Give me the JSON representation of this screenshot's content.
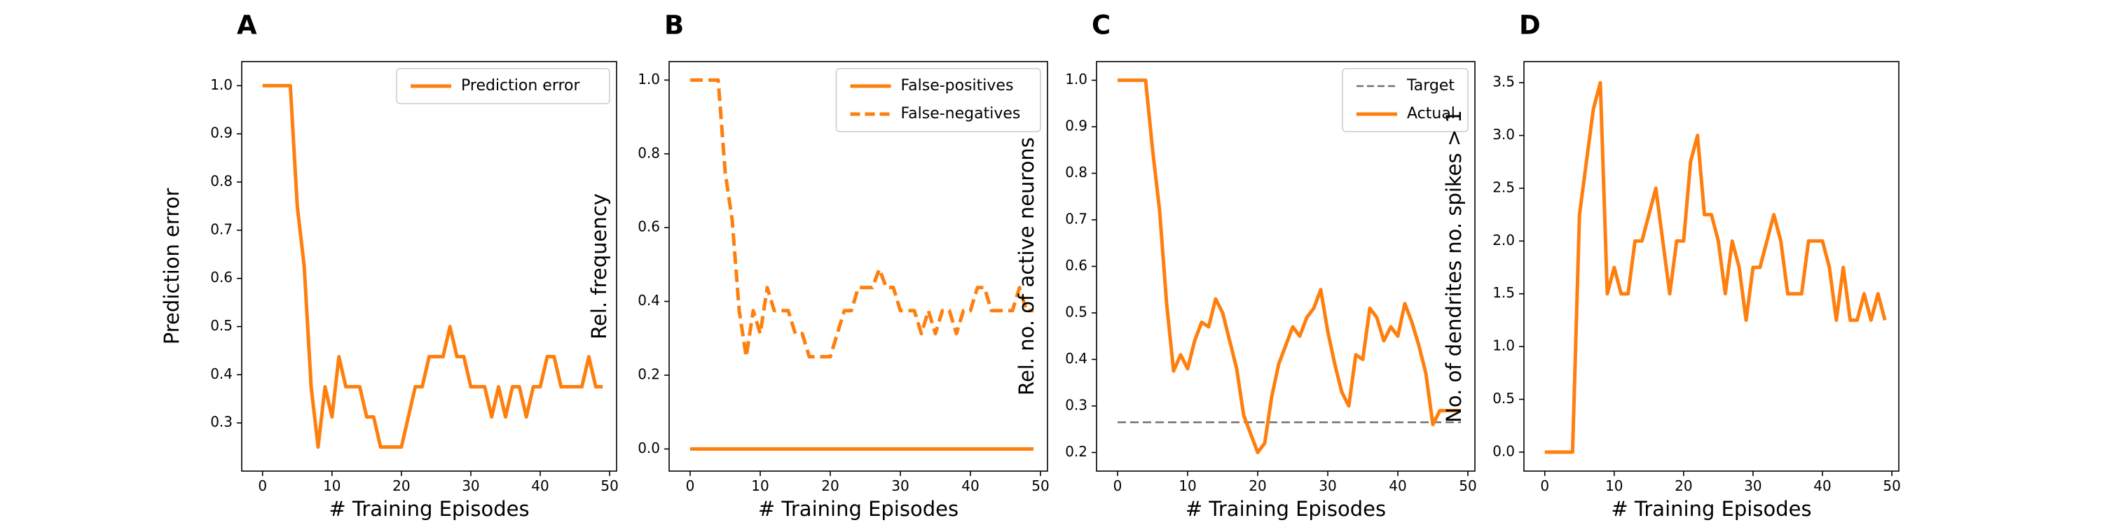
{
  "colors": {
    "series": "#ff7f0e",
    "target": "#707070",
    "axes": "#000000",
    "legend_border": "#cccccc"
  },
  "chart_data": [
    {
      "type": "line",
      "panel_label": "A",
      "xlabel": "# Training Episodes",
      "ylabel": "Prediction error",
      "xlim": [
        -3.0,
        51.0
      ],
      "ylim": [
        0.2,
        1.05
      ],
      "xticks": [
        0,
        10,
        20,
        30,
        40,
        50
      ],
      "yticks": [
        0.3,
        0.4,
        0.5,
        0.6,
        0.7,
        0.8,
        0.9,
        1.0
      ],
      "ytick_labels": [
        "0.3",
        "0.4",
        "0.5",
        "0.6",
        "0.7",
        "0.8",
        "0.9",
        "1.0"
      ],
      "legend_position": "upper right",
      "series": [
        {
          "name": "Prediction error",
          "style": "solid",
          "x": [
            0,
            1,
            2,
            3,
            4,
            5,
            6,
            7,
            8,
            9,
            10,
            11,
            12,
            13,
            14,
            15,
            16,
            17,
            18,
            19,
            20,
            21,
            22,
            23,
            24,
            25,
            26,
            27,
            28,
            29,
            30,
            31,
            32,
            33,
            34,
            35,
            36,
            37,
            38,
            39,
            40,
            41,
            42,
            43,
            44,
            45,
            46,
            47,
            48,
            49
          ],
          "y": [
            1.0,
            1.0,
            1.0,
            1.0,
            1.0,
            0.75,
            0.625,
            0.375,
            0.25,
            0.375,
            0.3125,
            0.4375,
            0.375,
            0.375,
            0.375,
            0.3125,
            0.3125,
            0.25,
            0.25,
            0.25,
            0.25,
            0.3125,
            0.375,
            0.375,
            0.4375,
            0.4375,
            0.4375,
            0.5,
            0.4375,
            0.4375,
            0.375,
            0.375,
            0.375,
            0.3125,
            0.375,
            0.3125,
            0.375,
            0.375,
            0.3125,
            0.375,
            0.375,
            0.4375,
            0.4375,
            0.375,
            0.375,
            0.375,
            0.375,
            0.4375,
            0.375,
            0.375
          ]
        }
      ]
    },
    {
      "type": "line",
      "panel_label": "B",
      "xlabel": "# Training Episodes",
      "ylabel": "Rel. frequency",
      "xlim": [
        -3.0,
        51.0
      ],
      "ylim": [
        -0.06,
        1.05
      ],
      "xticks": [
        0,
        10,
        20,
        30,
        40,
        50
      ],
      "yticks": [
        0.0,
        0.2,
        0.4,
        0.6,
        0.8,
        1.0
      ],
      "ytick_labels": [
        "0.0",
        "0.2",
        "0.4",
        "0.6",
        "0.8",
        "1.0"
      ],
      "legend_position": "upper right",
      "series": [
        {
          "name": "False-positives",
          "style": "solid",
          "x": [
            0,
            49
          ],
          "y": [
            0.0,
            0.0
          ]
        },
        {
          "name": "False-negatives",
          "style": "dashed",
          "x": [
            0,
            1,
            2,
            3,
            4,
            5,
            6,
            7,
            8,
            9,
            10,
            11,
            12,
            13,
            14,
            15,
            16,
            17,
            18,
            19,
            20,
            21,
            22,
            23,
            24,
            25,
            26,
            27,
            28,
            29,
            30,
            31,
            32,
            33,
            34,
            35,
            36,
            37,
            38,
            39,
            40,
            41,
            42,
            43,
            44,
            45,
            46,
            47,
            48,
            49
          ],
          "y": [
            1.0,
            1.0,
            1.0,
            1.0,
            1.0,
            0.75,
            0.62,
            0.375,
            0.25,
            0.375,
            0.3125,
            0.4375,
            0.375,
            0.375,
            0.375,
            0.3125,
            0.3125,
            0.25,
            0.25,
            0.25,
            0.25,
            0.3125,
            0.375,
            0.375,
            0.4375,
            0.4375,
            0.4375,
            0.4875,
            0.4375,
            0.4375,
            0.375,
            0.375,
            0.375,
            0.3125,
            0.375,
            0.3125,
            0.375,
            0.375,
            0.3125,
            0.375,
            0.375,
            0.4375,
            0.4375,
            0.375,
            0.375,
            0.375,
            0.375,
            0.4375,
            0.375,
            0.375
          ]
        }
      ]
    },
    {
      "type": "line",
      "panel_label": "C",
      "xlabel": "# Training Episodes",
      "ylabel": "Rel. no. of active neurons",
      "xlim": [
        -3.0,
        51.0
      ],
      "ylim": [
        0.16,
        1.04
      ],
      "xticks": [
        0,
        10,
        20,
        30,
        40,
        50
      ],
      "yticks": [
        0.2,
        0.3,
        0.4,
        0.5,
        0.6,
        0.7,
        0.8,
        0.9,
        1.0
      ],
      "ytick_labels": [
        "0.2",
        "0.3",
        "0.4",
        "0.5",
        "0.6",
        "0.7",
        "0.8",
        "0.9",
        "1.0"
      ],
      "legend_position": "upper right",
      "series": [
        {
          "name": "Target",
          "style": "dashed-thin",
          "x": [
            0,
            49
          ],
          "y": [
            0.265,
            0.265
          ]
        },
        {
          "name": "Actual",
          "style": "solid",
          "x": [
            0,
            1,
            2,
            3,
            4,
            5,
            6,
            7,
            8,
            9,
            10,
            11,
            12,
            13,
            14,
            15,
            16,
            17,
            18,
            19,
            20,
            21,
            22,
            23,
            24,
            25,
            26,
            27,
            28,
            29,
            30,
            31,
            32,
            33,
            34,
            35,
            36,
            37,
            38,
            39,
            40,
            41,
            42,
            43,
            44,
            45,
            46,
            47,
            48,
            49
          ],
          "y": [
            1.0,
            1.0,
            1.0,
            1.0,
            1.0,
            0.85,
            0.72,
            0.52,
            0.375,
            0.41,
            0.38,
            0.44,
            0.48,
            0.47,
            0.53,
            0.5,
            0.44,
            0.38,
            0.28,
            0.24,
            0.2,
            0.22,
            0.32,
            0.39,
            0.43,
            0.47,
            0.45,
            0.49,
            0.51,
            0.55,
            0.46,
            0.39,
            0.33,
            0.3,
            0.41,
            0.4,
            0.51,
            0.49,
            0.44,
            0.47,
            0.45,
            0.52,
            0.48,
            0.43,
            0.37,
            0.26,
            0.29,
            0.29,
            0.29,
            0.29
          ]
        }
      ]
    },
    {
      "type": "line",
      "panel_label": "D",
      "xlabel": "# Training Episodes",
      "ylabel": "No. of dendrites no. spikes > 1",
      "xlim": [
        -3.0,
        51.0
      ],
      "ylim": [
        -0.18,
        3.7
      ],
      "xticks": [
        0,
        10,
        20,
        30,
        40,
        50
      ],
      "yticks": [
        0.0,
        0.5,
        1.0,
        1.5,
        2.0,
        2.5,
        3.0,
        3.5
      ],
      "ytick_labels": [
        "0.0",
        "0.5",
        "1.0",
        "1.5",
        "2.0",
        "2.5",
        "3.0",
        "3.5"
      ],
      "legend_position": "none",
      "series": [
        {
          "name": "",
          "style": "solid",
          "x": [
            0,
            1,
            2,
            3,
            4,
            5,
            6,
            7,
            8,
            9,
            10,
            11,
            12,
            13,
            14,
            15,
            16,
            17,
            18,
            19,
            20,
            21,
            22,
            23,
            24,
            25,
            26,
            27,
            28,
            29,
            30,
            31,
            32,
            33,
            34,
            35,
            36,
            37,
            38,
            39,
            40,
            41,
            42,
            43,
            44,
            45,
            46,
            47,
            48,
            49
          ],
          "y": [
            0.0,
            0.0,
            0.0,
            0.0,
            0.0,
            2.25,
            2.75,
            3.25,
            3.5,
            1.5,
            1.75,
            1.5,
            1.5,
            2.0,
            2.0,
            2.25,
            2.5,
            2.0,
            1.5,
            2.0,
            2.0,
            2.75,
            3.0,
            2.25,
            2.25,
            2.0,
            1.5,
            2.0,
            1.75,
            1.25,
            1.75,
            1.75,
            2.0,
            2.25,
            2.0,
            1.5,
            1.5,
            1.5,
            2.0,
            2.0,
            2.0,
            1.75,
            1.25,
            1.75,
            1.25,
            1.25,
            1.5,
            1.25,
            1.5,
            1.25
          ]
        }
      ]
    }
  ]
}
